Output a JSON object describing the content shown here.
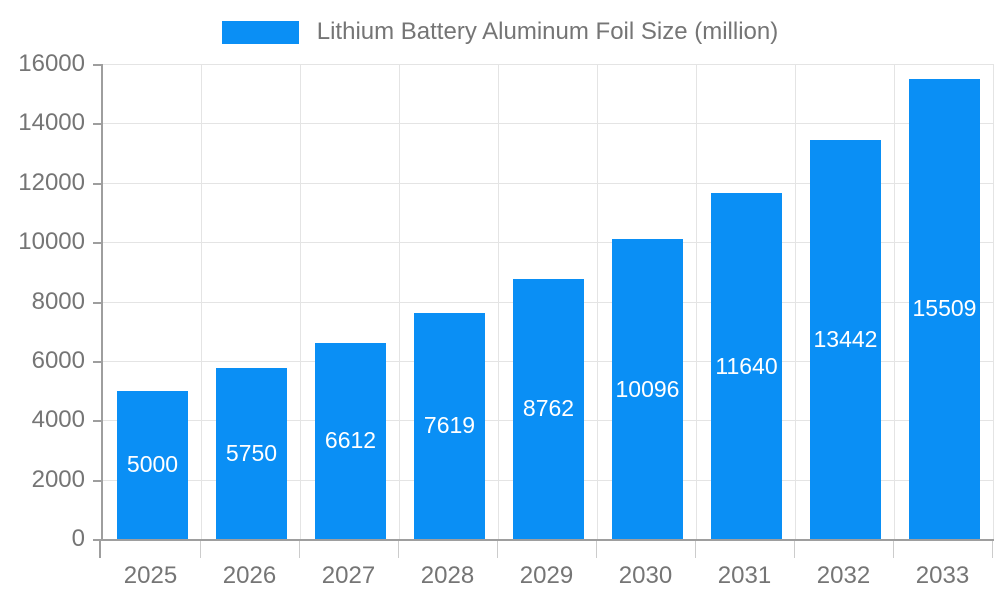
{
  "chart_data": {
    "type": "bar",
    "title": "Lithium Battery Aluminum Foil Size (million)",
    "categories": [
      "2025",
      "2026",
      "2027",
      "2028",
      "2029",
      "2030",
      "2031",
      "2032",
      "2033"
    ],
    "values": [
      5000,
      5750,
      6612,
      7619,
      8762,
      10096,
      11640,
      13442,
      15509
    ],
    "xlabel": "",
    "ylabel": "",
    "ylim": [
      0,
      16000
    ],
    "yticks": [
      0,
      2000,
      4000,
      6000,
      8000,
      10000,
      12000,
      14000,
      16000
    ],
    "legend_position": "top-center",
    "grid": "horizontal-and-vertical",
    "value_labels": "inside-center-white",
    "colors": {
      "bar": "#0a8ff5",
      "axis_line": "#9e9e9e",
      "grid_line": "#e4e4e4",
      "x_tick_line": "#cccccc",
      "axis_text": "#757575",
      "legend_text": "#757575",
      "value_label_text": "#ffffff",
      "background": "#ffffff"
    }
  }
}
